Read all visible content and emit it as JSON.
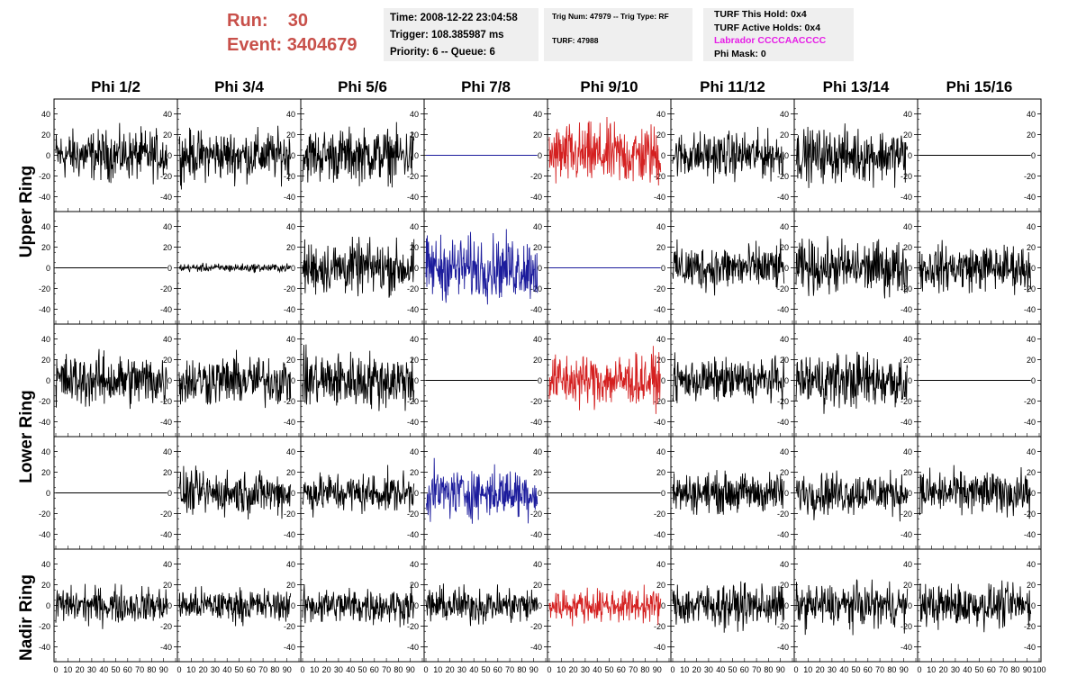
{
  "header": {
    "run_label": "Run:",
    "run_value": "30",
    "event_label": "Event:",
    "event_value": "3404679",
    "time": "Time: 2008-12-22 23:04:58",
    "trigger": "Trigger: 108.385987 ms",
    "priority": "Priority: 6 -- Queue: 6",
    "trig_num": "Trig Num: 47979 -- Trig Type: RF",
    "turf": "TURF: 47988",
    "turf_this_hold": "TURF This Hold: 0x4",
    "turf_active_holds": "TURF Active Holds: 0x4",
    "labrador": "Labrador CCCCAACCCC",
    "phi_mask": "Phi Mask: 0"
  },
  "colors": {
    "header_red": "#c8504a",
    "labrador": "#e61ee6",
    "trace_black": "#000000",
    "trace_red": "#d42020",
    "trace_blue": "#1c1c9c",
    "info_bg": "#efefef"
  },
  "chart_data": {
    "type": "line",
    "columns": [
      "Phi 1/2",
      "Phi 3/4",
      "Phi 5/6",
      "Phi 7/8",
      "Phi 9/10",
      "Phi 11/12",
      "Phi 13/14",
      "Phi 15/16"
    ],
    "rows": [
      "Upper Ring",
      "Upper Ring",
      "Lower Ring",
      "Lower Ring",
      "Nadir Ring"
    ],
    "row_labels": [
      "Upper Ring",
      "Lower Ring",
      "Nadir Ring"
    ],
    "xlim": [
      0,
      100
    ],
    "ylim": [
      -50,
      50
    ],
    "x_ticks": [
      "0",
      "10",
      "20",
      "30",
      "40",
      "50",
      "60",
      "70",
      "80",
      "90",
      "100"
    ],
    "y_ticks": [
      "40",
      "20",
      "0",
      "-20",
      "-40"
    ],
    "samples": 256,
    "x_end": 93,
    "panels": [
      [
        {
          "amp": 15,
          "color": "black"
        },
        {
          "amp": 15,
          "color": "black"
        },
        {
          "amp": 16,
          "color": "black"
        },
        {
          "amp": 0,
          "color": "blue"
        },
        {
          "amp": 19,
          "color": "red"
        },
        {
          "amp": 14,
          "color": "black"
        },
        {
          "amp": 16,
          "color": "black"
        },
        {
          "amp": 0,
          "color": "black"
        }
      ],
      [
        {
          "amp": 0,
          "color": "black"
        },
        {
          "amp": 2.5,
          "color": "black"
        },
        {
          "amp": 16,
          "color": "black"
        },
        {
          "amp": 19,
          "color": "blue"
        },
        {
          "amp": 0,
          "color": "blue"
        },
        {
          "amp": 14,
          "color": "black"
        },
        {
          "amp": 16,
          "color": "black"
        },
        {
          "amp": 14,
          "color": "black"
        }
      ],
      [
        {
          "amp": 16,
          "color": "black"
        },
        {
          "amp": 15,
          "color": "black"
        },
        {
          "amp": 17,
          "color": "black"
        },
        {
          "amp": 0,
          "color": "black"
        },
        {
          "amp": 16,
          "color": "red"
        },
        {
          "amp": 13,
          "color": "black"
        },
        {
          "amp": 17,
          "color": "black"
        },
        {
          "amp": 0,
          "color": "black"
        }
      ],
      [
        {
          "amp": 0,
          "color": "black"
        },
        {
          "amp": 13,
          "color": "black"
        },
        {
          "amp": 12,
          "color": "black"
        },
        {
          "amp": 15,
          "color": "blue"
        },
        {
          "amp": 0,
          "color": "black"
        },
        {
          "amp": 12,
          "color": "black"
        },
        {
          "amp": 13,
          "color": "black"
        },
        {
          "amp": 13,
          "color": "black"
        }
      ],
      [
        {
          "amp": 11,
          "color": "black"
        },
        {
          "amp": 10,
          "color": "black"
        },
        {
          "amp": 11,
          "color": "black"
        },
        {
          "amp": 11,
          "color": "black"
        },
        {
          "amp": 10,
          "color": "red"
        },
        {
          "amp": 13,
          "color": "black"
        },
        {
          "amp": 13,
          "color": "black"
        },
        {
          "amp": 13,
          "color": "black"
        }
      ]
    ]
  }
}
